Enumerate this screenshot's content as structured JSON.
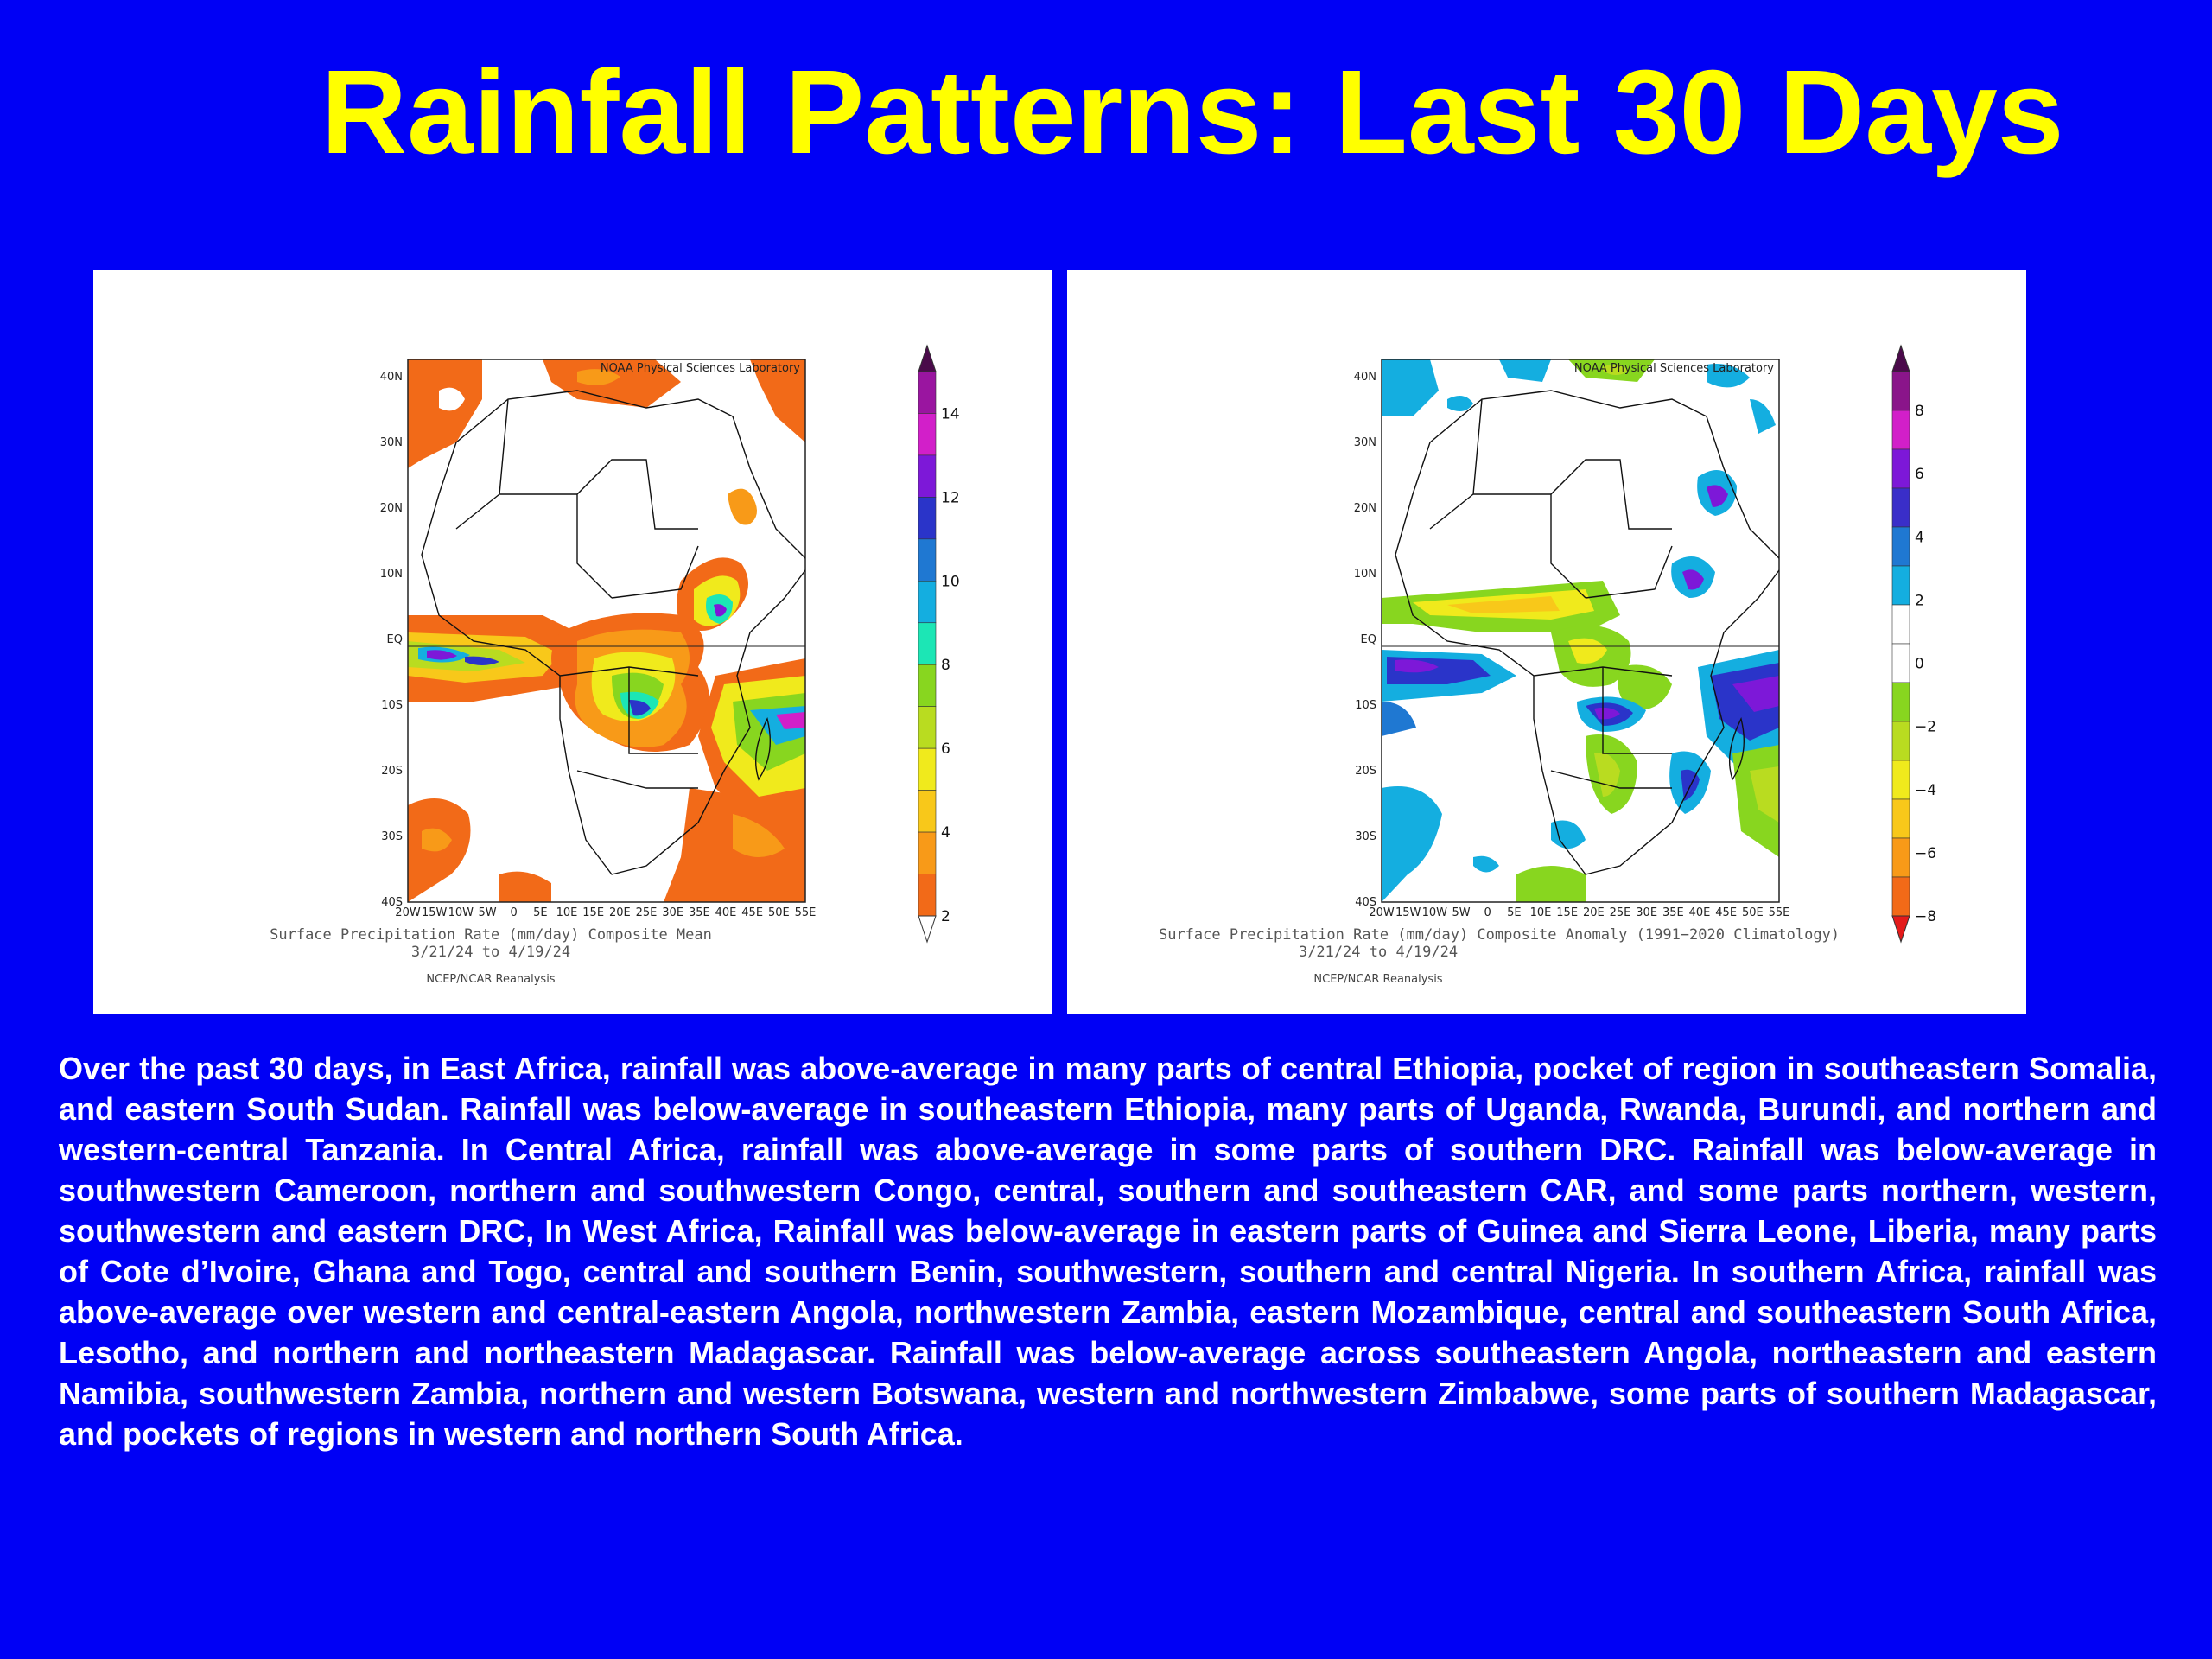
{
  "title": "Rainfall Patterns: Last 30 Days",
  "lat_labels": [
    "40N",
    "30N",
    "20N",
    "10N",
    "EQ",
    "10S",
    "20S",
    "30S",
    "40S"
  ],
  "lon_labels": [
    "20W",
    "15W",
    "10W",
    "5W",
    "0",
    "5E",
    "10E",
    "15E",
    "20E",
    "25E",
    "30E",
    "35E",
    "40E",
    "45E",
    "50E",
    "55E"
  ],
  "maps": [
    {
      "source": "NOAA Physical Sciences Laboratory",
      "caption": "Surface Precipitation Rate (mm/day) Composite Mean",
      "dates": "3/21/24  to 4/19/24",
      "dataset": "NCEP/NCAR Reanalysis",
      "colorbar_labels": [
        "14",
        "12",
        "10",
        "8",
        "6",
        "4",
        "2"
      ],
      "colorbar_colors": [
        "#4a0a4a",
        "#9a15a0",
        "#d21fc9",
        "#7d18d8",
        "#2a34c9",
        "#1f78d2",
        "#14aee0",
        "#1ce6b5",
        "#88d61f",
        "#b9dc20",
        "#f0ea1c",
        "#f8c81a",
        "#f89a18",
        "#f26a18",
        "#ffffff"
      ]
    },
    {
      "source": "NOAA Physical Sciences Laboratory",
      "caption": "Surface Precipitation Rate (mm/day) Composite Anomaly (1991−2020 Climatology)",
      "dates": "3/21/24  to 4/19/24",
      "dataset": "NCEP/NCAR Reanalysis",
      "colorbar_labels": [
        "8",
        "6",
        "4",
        "2",
        "0",
        "−2",
        "−4",
        "−6",
        "−8"
      ],
      "colorbar_colors": [
        "#4a0a4a",
        "#8a158a",
        "#d21fc9",
        "#7d18d8",
        "#3a2ec9",
        "#1f78d2",
        "#14aee0",
        "#ffffff",
        "#ffffff",
        "#88d61f",
        "#b9dc20",
        "#f0ea1c",
        "#f8c81a",
        "#f89a18",
        "#f26a18",
        "#e41a1a"
      ]
    }
  ],
  "summary": "Over the past 30 days, in East Africa, rainfall was above-average in many parts of central Ethiopia, pocket of region in southeastern Somalia, and eastern South Sudan. Rainfall was below-average in southeastern Ethiopia, many parts of Uganda, Rwanda, Burundi, and northern and western-central Tanzania.  In Central Africa, rainfall was above-average in some parts of southern DRC. Rainfall was below-average in southwestern Cameroon, northern and southwestern Congo, central, southern and southeastern CAR, and some parts northern, western, southwestern and eastern DRC,  In West Africa, Rainfall was below-average in eastern parts of Guinea and Sierra Leone, Liberia, many parts of Cote d’Ivoire, Ghana and Togo, central and southern Benin, southwestern, southern and central Nigeria. In southern Africa, rainfall was above-average over western and central-eastern Angola, northwestern Zambia, eastern Mozambique, central and southeastern South Africa, Lesotho, and northern and northeastern Madagascar.  Rainfall was below-average across southeastern Angola, northeastern and eastern Namibia, southwestern Zambia, northern and western Botswana, western and northwestern Zimbabwe, some parts of southern Madagascar, and pockets of regions in western and northern South Africa."
}
